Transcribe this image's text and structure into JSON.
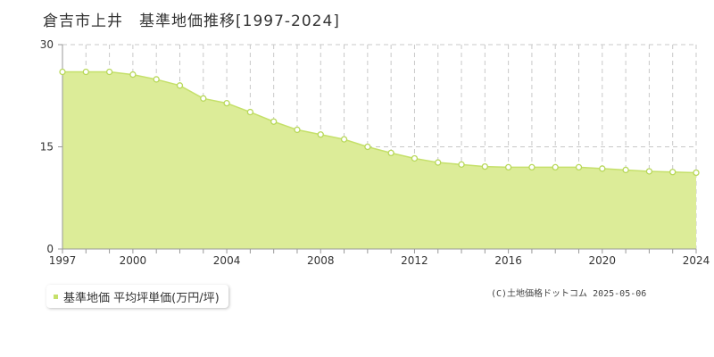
{
  "title": "倉吉市上井　基準地価推移[1997-2024]",
  "legend_label": "基準地価 平均坪単価(万円/坪)",
  "copyright": "(C)土地価格ドットコム 2025-05-06",
  "colors": {
    "fill": "#dcec98",
    "line": "#c5e06a",
    "marker_stroke": "#b8d85a",
    "marker_fill": "#ffffff",
    "grid": "#c8c8c8",
    "axis": "#999999"
  },
  "chart_data": {
    "type": "area",
    "x": [
      1997,
      1998,
      1999,
      2000,
      2001,
      2002,
      2003,
      2004,
      2005,
      2006,
      2007,
      2008,
      2009,
      2010,
      2011,
      2012,
      2013,
      2014,
      2015,
      2016,
      2017,
      2018,
      2019,
      2020,
      2021,
      2022,
      2023,
      2024
    ],
    "series": [
      {
        "name": "基準地価 平均坪単価(万円/坪)",
        "values": [
          26.0,
          26.0,
          26.0,
          25.6,
          24.9,
          24.0,
          22.1,
          21.4,
          20.1,
          18.7,
          17.5,
          16.8,
          16.1,
          15.0,
          14.1,
          13.3,
          12.7,
          12.4,
          12.1,
          12.0,
          12.0,
          12.0,
          12.0,
          11.8,
          11.6,
          11.4,
          11.3,
          11.2
        ]
      }
    ],
    "xlim": [
      1997,
      2024
    ],
    "ylim": [
      0,
      30
    ],
    "x_ticks": [
      "1997",
      "2000",
      "2004",
      "2008",
      "2012",
      "2016",
      "2020",
      "2024"
    ],
    "y_ticks": [
      "0",
      "15",
      "30"
    ],
    "grid": true,
    "legend_position": "bottom-left"
  }
}
